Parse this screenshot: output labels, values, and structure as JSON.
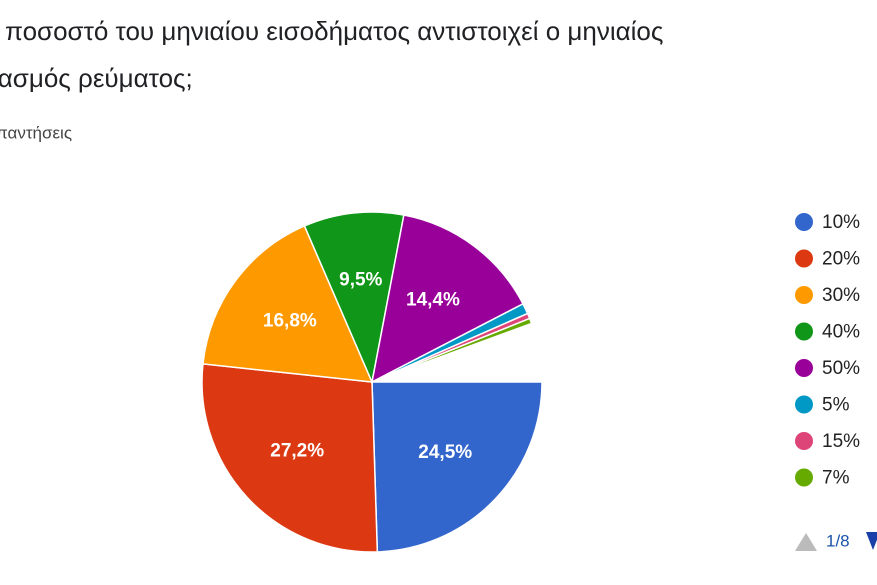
{
  "chart_data": {
    "type": "pie",
    "title_lines": [
      "ι ποσοστό του μηνιαίου εισοδήματος αντιστοιχεί ο μηνιαίος",
      "ιασμός ρεύματος;"
    ],
    "subtitle": "παντήσεις",
    "categories": [
      "10%",
      "20%",
      "30%",
      "40%",
      "50%",
      "5%",
      "15%",
      "7%"
    ],
    "values": [
      24.5,
      27.2,
      16.8,
      9.5,
      14.4,
      1,
      0.5,
      0.5
    ],
    "value_labels": [
      "24,5%",
      "27,2%",
      "16,8%",
      "9,5%",
      "14,4%",
      null,
      null,
      null
    ],
    "colors": [
      "#3366cc",
      "#dc3912",
      "#ff9900",
      "#109618",
      "#990099",
      "#0099c6",
      "#dd4477",
      "#66aa00"
    ],
    "legend": "right",
    "legend_page": "1/8"
  }
}
